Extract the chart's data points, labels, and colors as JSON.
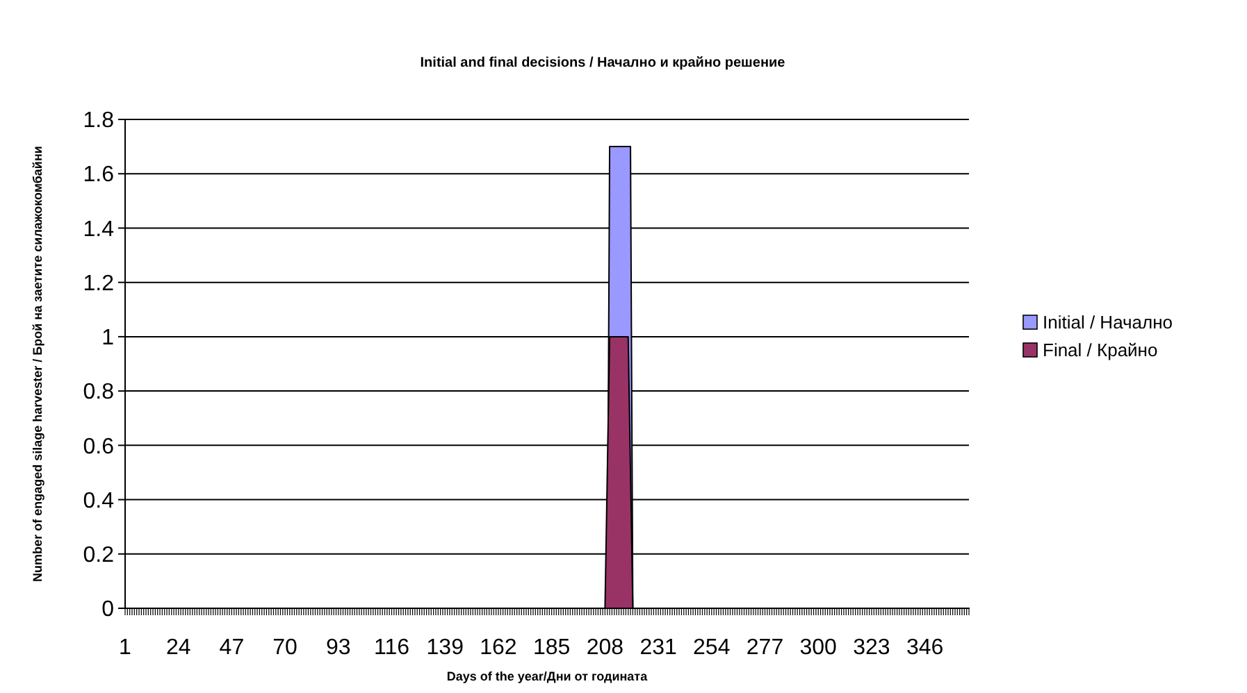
{
  "chart_data": {
    "type": "area",
    "title": "Initial and final decisions / Начално и крайно решение",
    "xlabel": "Days of the year/Дни от годината",
    "ylabel": "Number of engaged silage harvester / Брой на заетите силажокомбайни",
    "xlim": [
      1,
      365
    ],
    "xticks": [
      1,
      24,
      47,
      70,
      93,
      116,
      139,
      162,
      185,
      208,
      231,
      254,
      277,
      300,
      323,
      346
    ],
    "ylim": [
      0,
      1.8
    ],
    "yticks": [
      0,
      0.2,
      0.4,
      0.6,
      0.8,
      1,
      1.2,
      1.4,
      1.6,
      1.8
    ],
    "grid": "y",
    "legend": "right",
    "series": [
      {
        "name": "Initial / Начално",
        "color": "#9999ff",
        "x": [
          1,
          209,
          210,
          219,
          220,
          365
        ],
        "values": [
          0,
          0,
          1.7,
          1.7,
          0,
          0
        ]
      },
      {
        "name": "Final / Крайно",
        "color": "#993366",
        "x": [
          1,
          208,
          210,
          218,
          220,
          365
        ],
        "values": [
          0,
          0,
          1,
          1,
          0,
          0
        ]
      }
    ]
  }
}
